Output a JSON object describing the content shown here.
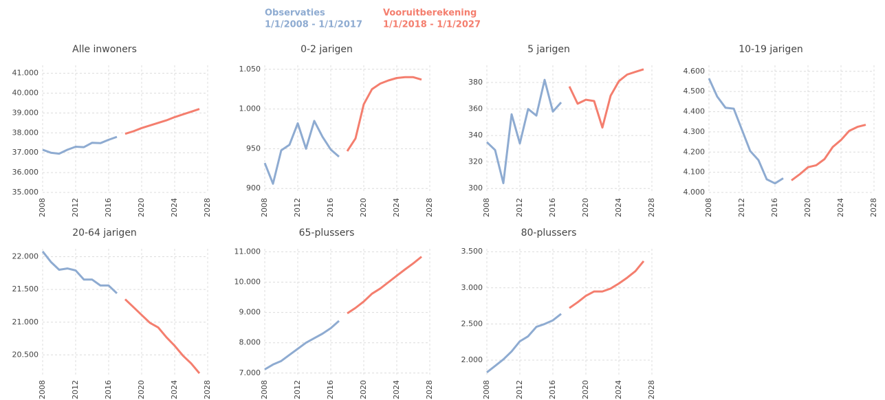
{
  "legend": [
    {
      "name": "Observaties",
      "period": "1/1/2008 - 1/1/2017",
      "color": "#8eabd1"
    },
    {
      "name": "Vooruitberekening",
      "period": "1/1/2018 - 1/1/2027",
      "color": "#f47e6e"
    }
  ],
  "chart_data": [
    {
      "type": "line",
      "title": "Alle inwoners",
      "grid": true,
      "x": [
        2008,
        2009,
        2010,
        2011,
        2012,
        2013,
        2014,
        2015,
        2016,
        2017,
        2018,
        2019,
        2020,
        2021,
        2022,
        2023,
        2024,
        2025,
        2026,
        2027
      ],
      "xlim": [
        2008,
        2028
      ],
      "xticks": [
        2008,
        2012,
        2016,
        2020,
        2024,
        2028
      ],
      "ylim": [
        35000,
        41400
      ],
      "yticks": [
        {
          "value": 35000,
          "label": "35.000"
        },
        {
          "value": 36000,
          "label": "36.000"
        },
        {
          "value": 37000,
          "label": "37.000"
        },
        {
          "value": 38000,
          "label": "38.000"
        },
        {
          "value": 39000,
          "label": "39.000"
        },
        {
          "value": 40000,
          "label": "40.000"
        },
        {
          "value": 41000,
          "label": "41.000"
        }
      ],
      "series": [
        {
          "values": [
            37150,
            37000,
            36950,
            37150,
            37300,
            37280,
            37500,
            37480,
            37650,
            37800,
            null,
            null,
            null,
            null,
            null,
            null,
            null,
            null,
            null,
            null
          ]
        },
        {
          "values": [
            null,
            null,
            null,
            null,
            null,
            null,
            null,
            null,
            null,
            null,
            37950,
            38080,
            38240,
            38370,
            38500,
            38630,
            38790,
            38930,
            39060,
            39200
          ]
        }
      ]
    },
    {
      "type": "line",
      "title": "0-2 jarigen",
      "grid": true,
      "x": [
        2008,
        2009,
        2010,
        2011,
        2012,
        2013,
        2014,
        2015,
        2016,
        2017,
        2018,
        2019,
        2020,
        2021,
        2022,
        2023,
        2024,
        2025,
        2026,
        2027
      ],
      "xlim": [
        2008,
        2028
      ],
      "xticks": [
        2008,
        2012,
        2016,
        2020,
        2024,
        2028
      ],
      "ylim": [
        895,
        1055
      ],
      "yticks": [
        900,
        950,
        {
          "value": 1000,
          "label": "1.000"
        },
        {
          "value": 1050,
          "label": "1.050"
        }
      ],
      "series": [
        {
          "values": [
            932,
            906,
            948,
            955,
            982,
            950,
            985,
            965,
            949,
            940,
            null,
            null,
            null,
            null,
            null,
            null,
            null,
            null,
            null,
            null
          ]
        },
        {
          "values": [
            null,
            null,
            null,
            null,
            null,
            null,
            null,
            null,
            null,
            null,
            947,
            963,
            1006,
            1025,
            1032,
            1036,
            1039,
            1040,
            1040,
            1037
          ]
        }
      ]
    },
    {
      "type": "line",
      "title": "5 jarigen",
      "grid": true,
      "x": [
        2008,
        2009,
        2010,
        2011,
        2012,
        2013,
        2014,
        2015,
        2016,
        2017,
        2018,
        2019,
        2020,
        2021,
        2022,
        2023,
        2024,
        2025,
        2026,
        2027
      ],
      "xlim": [
        2008,
        2028
      ],
      "xticks": [
        2008,
        2012,
        2016,
        2020,
        2024,
        2028
      ],
      "ylim": [
        297,
        393
      ],
      "yticks": [
        300,
        320,
        340,
        360,
        380
      ],
      "series": [
        {
          "values": [
            335,
            329,
            304,
            356,
            334,
            360,
            355,
            382,
            358,
            365,
            null,
            null,
            null,
            null,
            null,
            null,
            null,
            null,
            null,
            null
          ]
        },
        {
          "values": [
            null,
            null,
            null,
            null,
            null,
            null,
            null,
            null,
            null,
            null,
            377,
            364,
            367,
            366,
            346,
            370,
            381,
            386,
            388,
            390
          ]
        }
      ]
    },
    {
      "type": "line",
      "title": "10-19 jarigen",
      "grid": true,
      "x": [
        2008,
        2009,
        2010,
        2011,
        2012,
        2013,
        2014,
        2015,
        2016,
        2017,
        2018,
        2019,
        2020,
        2021,
        2022,
        2023,
        2024,
        2025,
        2026,
        2027
      ],
      "xlim": [
        2008,
        2028
      ],
      "xticks": [
        2008,
        2012,
        2016,
        2020,
        2024,
        2028
      ],
      "ylim": [
        4000,
        4630
      ],
      "yticks": [
        {
          "value": 4000,
          "label": "4.000"
        },
        {
          "value": 4100,
          "label": "4.100"
        },
        {
          "value": 4200,
          "label": "4.200"
        },
        {
          "value": 4300,
          "label": "4.300"
        },
        {
          "value": 4400,
          "label": "4.400"
        },
        {
          "value": 4500,
          "label": "4.500"
        },
        {
          "value": 4600,
          "label": "4.600"
        }
      ],
      "series": [
        {
          "values": [
            4565,
            4475,
            4420,
            4415,
            4310,
            4205,
            4160,
            4065,
            4045,
            4070,
            null,
            null,
            null,
            null,
            null,
            null,
            null,
            null,
            null,
            null
          ]
        },
        {
          "values": [
            null,
            null,
            null,
            null,
            null,
            null,
            null,
            null,
            null,
            null,
            4060,
            4090,
            4125,
            4135,
            4165,
            4225,
            4260,
            4305,
            4325,
            4335
          ]
        }
      ]
    },
    {
      "type": "line",
      "title": "20-64 jarigen",
      "grid": true,
      "x": [
        2008,
        2009,
        2010,
        2011,
        2012,
        2013,
        2014,
        2015,
        2016,
        2017,
        2018,
        2019,
        2020,
        2021,
        2022,
        2023,
        2024,
        2025,
        2026,
        2027
      ],
      "xlim": [
        2008,
        2028
      ],
      "xticks": [
        2008,
        2012,
        2016,
        2020,
        2024,
        2028
      ],
      "ylim": [
        20200,
        22120
      ],
      "yticks": [
        {
          "value": 20500,
          "label": "20.500"
        },
        {
          "value": 21000,
          "label": "21.000"
        },
        {
          "value": 21500,
          "label": "21.500"
        },
        {
          "value": 22000,
          "label": "22.000"
        }
      ],
      "series": [
        {
          "values": [
            22080,
            21920,
            21800,
            21820,
            21790,
            21650,
            21650,
            21560,
            21560,
            21440,
            null,
            null,
            null,
            null,
            null,
            null,
            null,
            null,
            null,
            null
          ]
        },
        {
          "values": [
            null,
            null,
            null,
            null,
            null,
            null,
            null,
            null,
            null,
            null,
            21350,
            21230,
            21110,
            20990,
            20920,
            20770,
            20640,
            20490,
            20370,
            20220
          ]
        }
      ]
    },
    {
      "type": "line",
      "title": "65-plussers",
      "grid": true,
      "x": [
        2008,
        2009,
        2010,
        2011,
        2012,
        2013,
        2014,
        2015,
        2016,
        2017,
        2018,
        2019,
        2020,
        2021,
        2022,
        2023,
        2024,
        2025,
        2026,
        2027
      ],
      "xlim": [
        2008,
        2028
      ],
      "xticks": [
        2008,
        2012,
        2016,
        2020,
        2024,
        2028
      ],
      "ylim": [
        6950,
        11100
      ],
      "yticks": [
        {
          "value": 7000,
          "label": "7.000"
        },
        {
          "value": 8000,
          "label": "8.000"
        },
        {
          "value": 9000,
          "label": "9.000"
        },
        {
          "value": 10000,
          "label": "10.000"
        },
        {
          "value": 11000,
          "label": "11.000"
        }
      ],
      "series": [
        {
          "values": [
            7120,
            7280,
            7400,
            7600,
            7800,
            8000,
            8150,
            8300,
            8480,
            8720,
            null,
            null,
            null,
            null,
            null,
            null,
            null,
            null,
            null,
            null
          ]
        },
        {
          "values": [
            null,
            null,
            null,
            null,
            null,
            null,
            null,
            null,
            null,
            null,
            8970,
            9150,
            9360,
            9620,
            9790,
            10000,
            10210,
            10420,
            10620,
            10840
          ]
        }
      ]
    },
    {
      "type": "line",
      "title": "80-plussers",
      "grid": true,
      "x": [
        2008,
        2009,
        2010,
        2011,
        2012,
        2013,
        2014,
        2015,
        2016,
        2017,
        2018,
        2019,
        2020,
        2021,
        2022,
        2023,
        2024,
        2025,
        2026,
        2027
      ],
      "xlim": [
        2008,
        2028
      ],
      "xticks": [
        2008,
        2012,
        2016,
        2020,
        2024,
        2028
      ],
      "ylim": [
        1800,
        3540
      ],
      "yticks": [
        {
          "value": 2000,
          "label": "2.000"
        },
        {
          "value": 2500,
          "label": "2.500"
        },
        {
          "value": 3000,
          "label": "3.000"
        },
        {
          "value": 3500,
          "label": "3.500"
        }
      ],
      "series": [
        {
          "values": [
            1830,
            1920,
            2010,
            2120,
            2260,
            2330,
            2460,
            2500,
            2550,
            2640,
            null,
            null,
            null,
            null,
            null,
            null,
            null,
            null,
            null,
            null
          ]
        },
        {
          "values": [
            null,
            null,
            null,
            null,
            null,
            null,
            null,
            null,
            null,
            null,
            2720,
            2800,
            2890,
            2950,
            2950,
            2990,
            3060,
            3140,
            3230,
            3370
          ]
        }
      ]
    }
  ]
}
